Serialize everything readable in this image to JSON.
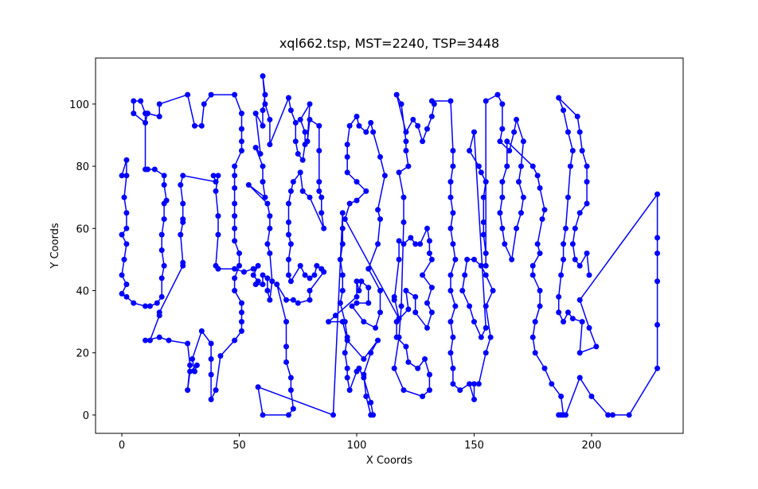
{
  "chart_data": {
    "type": "line",
    "title": "xql662.tsp, MST=2240, TSP=3448",
    "xlabel": "X Coords",
    "ylabel": "Y Coords",
    "xlim": [
      -11.2,
      239
    ],
    "ylim": [
      -5.9,
      114.8
    ],
    "xticks": [
      0,
      50,
      100,
      150,
      200
    ],
    "yticks": [
      0,
      20,
      40,
      60,
      80,
      100
    ],
    "series": [
      {
        "color": "#0000ff",
        "x": [
          0,
          2,
          2,
          1,
          2,
          2,
          0,
          2,
          1,
          0,
          2,
          0,
          2,
          5,
          10,
          12,
          15,
          17,
          17,
          18,
          17,
          17,
          18,
          18,
          19,
          18,
          18,
          14,
          11,
          10,
          10,
          8,
          5,
          5,
          10,
          11,
          16,
          16,
          28,
          31,
          34,
          35,
          38,
          48,
          51,
          51,
          51,
          51,
          48,
          48,
          48,
          48,
          48,
          48,
          48,
          50,
          50,
          48,
          48,
          51,
          51,
          51,
          51,
          48,
          42,
          40,
          38,
          38,
          38,
          38,
          34,
          30,
          31,
          32,
          29,
          28,
          29,
          28,
          20,
          16,
          10,
          12,
          16,
          16,
          26,
          26,
          25,
          26,
          26,
          26,
          25,
          26,
          40,
          39,
          41,
          40,
          41,
          41,
          40,
          41,
          48,
          52,
          56,
          58,
          56,
          58,
          57,
          60,
          60,
          62,
          62,
          63,
          64,
          63,
          62,
          63,
          63,
          62,
          54,
          61,
          60,
          60,
          57,
          59,
          57,
          60,
          60,
          61,
          60,
          61,
          63,
          63,
          71,
          72,
          74,
          74,
          75,
          77,
          78,
          78,
          76,
          80,
          79,
          80,
          84,
          84,
          84,
          84,
          85,
          85,
          86,
          80,
          77,
          76,
          73,
          72,
          71,
          71,
          71,
          72,
          71,
          71,
          72,
          76,
          78,
          80,
          82,
          83,
          85,
          86,
          80,
          80,
          75,
          73,
          70,
          66,
          70,
          70,
          70,
          72,
          72,
          73,
          71,
          60,
          58,
          90,
          94,
          94,
          94,
          93,
          94,
          94,
          93,
          95,
          96,
          95,
          96,
          96,
          97,
          100,
          101,
          103,
          106,
          107,
          106,
          104,
          103,
          106,
          109,
          103,
          96,
          94,
          88,
          91,
          100,
          100,
          101,
          102,
          105,
          105,
          100,
          98,
          103,
          108,
          110,
          110,
          105,
          109,
          110,
          109,
          112,
          110,
          107,
          106,
          104,
          101,
          100,
          97,
          96,
          96,
          96,
          100,
          104,
          100,
          97,
          95,
          118,
          116,
          116,
          118,
          118,
          120,
          123,
          125,
          127,
          130,
          131,
          131,
          132,
          128,
          132,
          130,
          132,
          130,
          125,
          125,
          121,
          122,
          117,
          117,
          121,
          122,
          126,
          129,
          131,
          131,
          128,
          120,
          116,
          118,
          119,
          120,
          120,
          118,
          122,
          121,
          121,
          119,
          117,
          121,
          124,
          126,
          128,
          130,
          132,
          133,
          132,
          140,
          141,
          141,
          140,
          140,
          141,
          140,
          141,
          142,
          140,
          140,
          142,
          140,
          141,
          140,
          141,
          141,
          144,
          148,
          150,
          150,
          152,
          155,
          157,
          155,
          158,
          155,
          153,
          150,
          147,
          146,
          145,
          148,
          150,
          153,
          155,
          150,
          148,
          152,
          153,
          155,
          154,
          154,
          154,
          155,
          155,
          155,
          160,
          162,
          162,
          161,
          165,
          167,
          168,
          171,
          170,
          169,
          171,
          170,
          168,
          166,
          163,
          162,
          161,
          162,
          162,
          164,
          164,
          175,
          177,
          178,
          180,
          179,
          177,
          178,
          175,
          175,
          178,
          178,
          176,
          175,
          176,
          180,
          183,
          187,
          188,
          187,
          186,
          189,
          195,
          200,
          207,
          209,
          216,
          228,
          228,
          228,
          228,
          228,
          228,
          195,
          199,
          202,
          195,
          196,
          192,
          190,
          188,
          186,
          186,
          187,
          188,
          188,
          189,
          190,
          191,
          192,
          190,
          188,
          186,
          194,
          195,
          196,
          198,
          198,
          198,
          195,
          193,
          192,
          193,
          195,
          198,
          199
        ],
        "values": [
          77,
          82,
          77,
          70,
          65,
          60,
          58,
          55,
          50,
          45,
          42,
          39,
          38,
          36,
          35,
          35,
          36,
          38,
          44,
          48,
          53,
          58,
          63,
          68,
          69,
          74,
          77,
          79,
          79,
          79,
          97,
          101,
          101,
          97,
          94,
          97,
          96,
          100,
          103,
          93,
          93,
          100,
          103,
          103,
          97,
          92,
          88,
          85,
          80,
          77,
          73,
          68,
          64,
          60,
          56,
          52,
          48,
          44,
          40,
          36,
          33,
          30,
          27,
          24,
          19,
          8,
          5,
          13,
          18,
          23,
          27,
          18,
          14,
          16,
          14,
          8,
          16,
          23,
          24,
          25,
          24,
          24,
          32,
          33,
          48,
          49,
          58,
          62,
          63,
          68,
          74,
          77,
          75,
          77,
          77,
          72,
          64,
          58,
          48,
          47,
          47,
          46,
          47,
          48,
          45,
          43,
          42,
          42,
          45,
          44,
          40,
          37,
          43,
          52,
          55,
          60,
          64,
          68,
          74,
          70,
          75,
          80,
          86,
          84,
          97,
          93,
          98,
          103,
          109,
          100,
          95,
          87,
          102,
          98,
          94,
          88,
          84,
          82,
          87,
          91,
          95,
          100,
          88,
          95,
          93,
          85,
          75,
          72,
          70,
          65,
          60,
          70,
          72,
          78,
          75,
          72,
          68,
          62,
          58,
          55,
          50,
          45,
          43,
          48,
          45,
          44,
          45,
          48,
          47,
          46,
          40,
          37,
          36,
          37,
          37,
          42,
          30,
          22,
          17,
          12,
          8,
          2,
          0,
          0,
          9,
          0,
          65,
          60,
          55,
          50,
          45,
          40,
          36,
          30,
          25,
          20,
          15,
          12,
          8,
          14,
          15,
          12,
          4,
          0,
          0,
          6,
          13,
          20,
          24,
          18,
          24,
          30,
          30,
          32,
          38,
          43,
          40,
          43,
          41,
          36,
          36,
          35,
          30,
          28,
          33,
          40,
          47,
          55,
          63,
          66,
          77,
          83,
          91,
          94,
          91,
          93,
          96,
          93,
          87,
          83,
          78,
          75,
          72,
          69,
          68,
          63,
          31,
          38,
          37,
          50,
          56,
          55,
          57,
          55,
          55,
          60,
          56,
          52,
          50,
          45,
          41,
          36,
          33,
          28,
          33,
          38,
          40,
          34,
          30,
          25,
          22,
          17,
          15,
          18,
          13,
          8,
          6,
          8,
          15,
          25,
          35,
          62,
          70,
          78,
          80,
          85,
          88,
          100,
          103,
          91,
          95,
          93,
          88,
          92,
          96,
          100,
          101,
          101,
          85,
          80,
          75,
          70,
          65,
          60,
          55,
          50,
          45,
          40,
          35,
          30,
          25,
          20,
          15,
          10,
          8,
          10,
          5,
          10,
          10,
          20,
          25,
          35,
          40,
          45,
          48,
          50,
          50,
          45,
          40,
          35,
          30,
          25,
          28,
          91,
          85,
          80,
          78,
          75,
          70,
          62,
          58,
          52,
          48,
          101,
          103,
          100,
          92,
          88,
          85,
          91,
          95,
          88,
          80,
          75,
          70,
          65,
          60,
          50,
          55,
          60,
          65,
          70,
          75,
          80,
          88,
          80,
          77,
          73,
          66,
          63,
          55,
          52,
          48,
          45,
          40,
          35,
          30,
          25,
          20,
          15,
          10,
          6,
          0,
          0,
          0,
          0,
          12,
          6,
          0,
          0,
          0,
          15,
          29,
          43,
          52,
          57,
          71,
          37,
          28,
          22,
          20,
          30,
          31,
          33,
          30,
          33,
          38,
          45,
          50,
          55,
          60,
          70,
          80,
          85,
          91,
          98,
          102,
          96,
          91,
          85,
          80,
          75,
          68,
          65,
          60,
          55,
          50,
          48,
          52,
          45
        ]
      }
    ]
  }
}
